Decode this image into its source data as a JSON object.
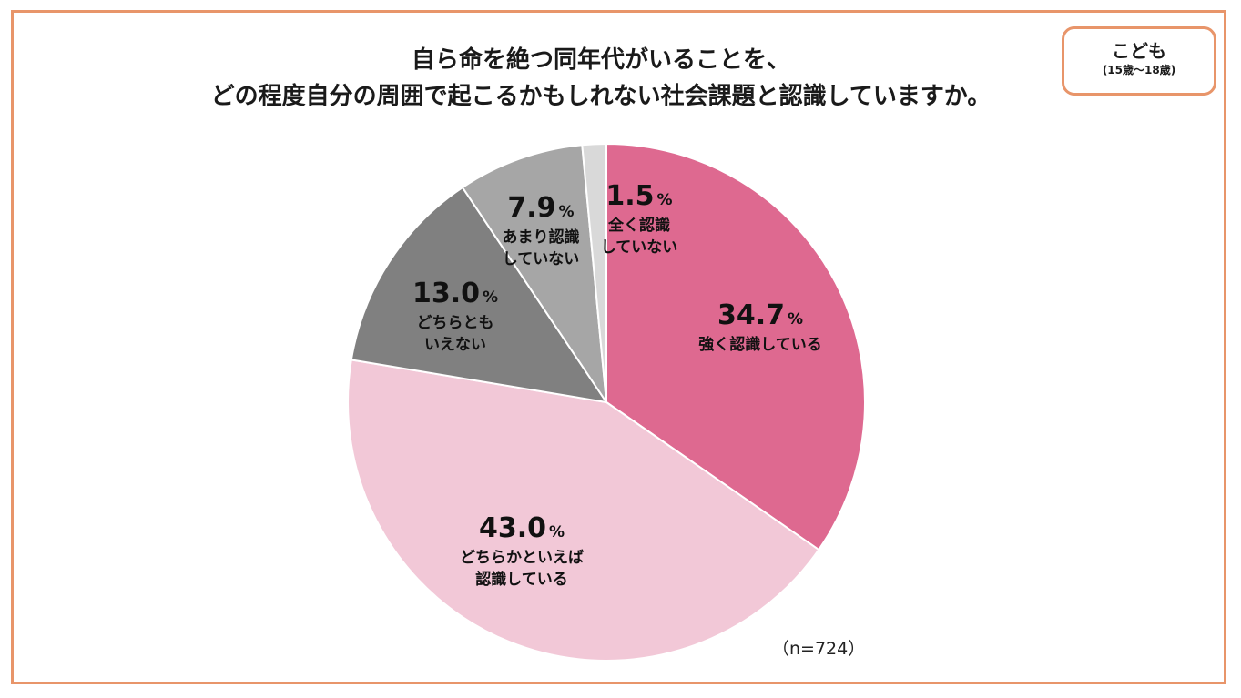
{
  "title_lines": [
    "自ら命を絶つ同年代がいることを、",
    "どの程度自分の周囲で起こるかもしれない社会課題と認識していますか。"
  ],
  "tag": {
    "main": "こども",
    "sub": "(15歳〜18歳)"
  },
  "note": "（n=724）",
  "chart_data": {
    "type": "pie",
    "title": "自ら命を絶つ同年代がいることを、どの程度自分の周囲で起こるかもしれない社会課題と認識していますか。",
    "unit": "%",
    "slices": [
      {
        "label_lines": [
          "強く認識している"
        ],
        "value": 34.7,
        "value_text": "34.7",
        "color": "#de6990"
      },
      {
        "label_lines": [
          "どちらかといえば",
          "認識している"
        ],
        "value": 43.0,
        "value_text": "43.0",
        "color": "#f2c8d7"
      },
      {
        "label_lines": [
          "どちらとも",
          "いえない"
        ],
        "value": 13.0,
        "value_text": "13.0",
        "color": "#808080"
      },
      {
        "label_lines": [
          "あまり認識",
          "していない"
        ],
        "value": 7.9,
        "value_text": "7.9",
        "color": "#a6a6a6"
      },
      {
        "label_lines": [
          "全く認識",
          "していない"
        ],
        "value": 1.5,
        "value_text": "1.5",
        "color": "#d9d9d9"
      }
    ]
  }
}
